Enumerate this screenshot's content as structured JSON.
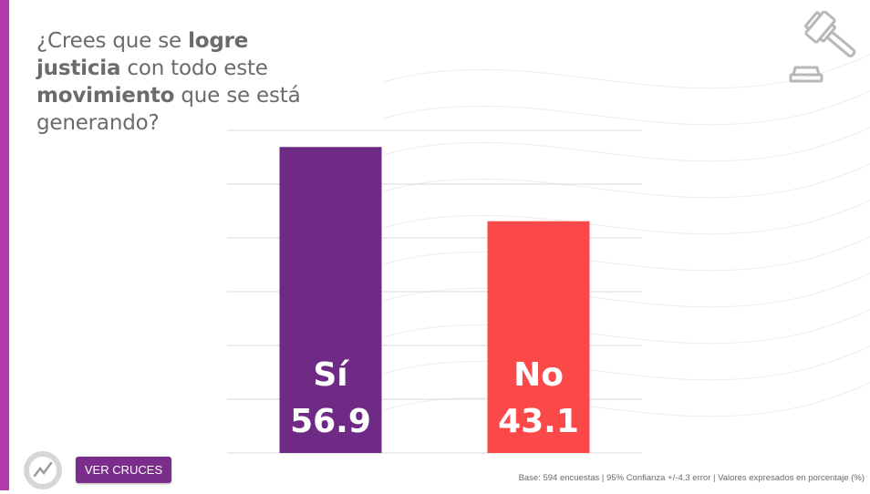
{
  "question": {
    "parts": [
      {
        "text": "¿Crees que se ",
        "bold": false
      },
      {
        "text": "logre",
        "bold": true
      },
      {
        "text": " ",
        "bold": false
      },
      {
        "text": "justicia",
        "bold": true
      },
      {
        "text": " con todo este ",
        "bold": false
      },
      {
        "text": "movimiento",
        "bold": true
      },
      {
        "text": " que se está generando?",
        "bold": false
      }
    ]
  },
  "chart_data": {
    "type": "bar",
    "categories": [
      "Sí",
      "No"
    ],
    "values": [
      56.9,
      43.1
    ],
    "value_labels": [
      "56.9",
      "43.1"
    ],
    "colors": [
      "#6f2a86",
      "#fb4848"
    ],
    "ylim": [
      0,
      60
    ],
    "gridlines": [
      0,
      10,
      20,
      30,
      40,
      50,
      60
    ],
    "grid": true,
    "title": "",
    "xlabel": "",
    "ylabel": ""
  },
  "button": {
    "label": "VER CRUCES"
  },
  "footnote": "Base: 594 encuestas | 95% Confianza +/-4.3 error | Valores expresados en porcentaje (%)",
  "icons": {
    "top_right": "gavel-icon",
    "bottom_left": "brand-logo"
  },
  "colors": {
    "accent_stripe": "#b03aa8",
    "button": "#7a2d8b"
  }
}
